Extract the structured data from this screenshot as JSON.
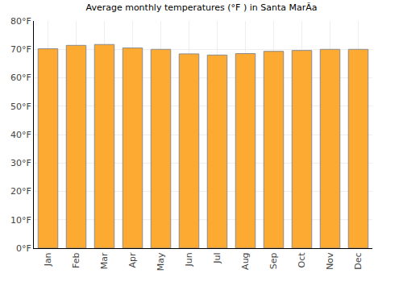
{
  "chart_data": {
    "type": "bar",
    "title": "Average monthly temperatures (°F ) in Santa MarÃa",
    "categories": [
      "Jan",
      "Feb",
      "Mar",
      "Apr",
      "May",
      "Jun",
      "Jul",
      "Aug",
      "Sep",
      "Oct",
      "Nov",
      "Dec"
    ],
    "values": [
      70.2,
      71.4,
      71.7,
      70.5,
      70.0,
      68.4,
      68.0,
      68.5,
      69.3,
      69.6,
      70.0,
      70.0
    ],
    "color": "#fdaa33",
    "ylim": [
      0,
      80
    ],
    "yticks": [
      {
        "value": 0,
        "label": "0°F"
      },
      {
        "value": 10,
        "label": "10°F"
      },
      {
        "value": 20,
        "label": "20°F"
      },
      {
        "value": 30,
        "label": "30°F"
      },
      {
        "value": 40,
        "label": "40°F"
      },
      {
        "value": 50,
        "label": "50°F"
      },
      {
        "value": 60,
        "label": "60°F"
      },
      {
        "value": 70,
        "label": "70°F"
      },
      {
        "value": 80,
        "label": "80°F"
      }
    ],
    "grid": true
  }
}
